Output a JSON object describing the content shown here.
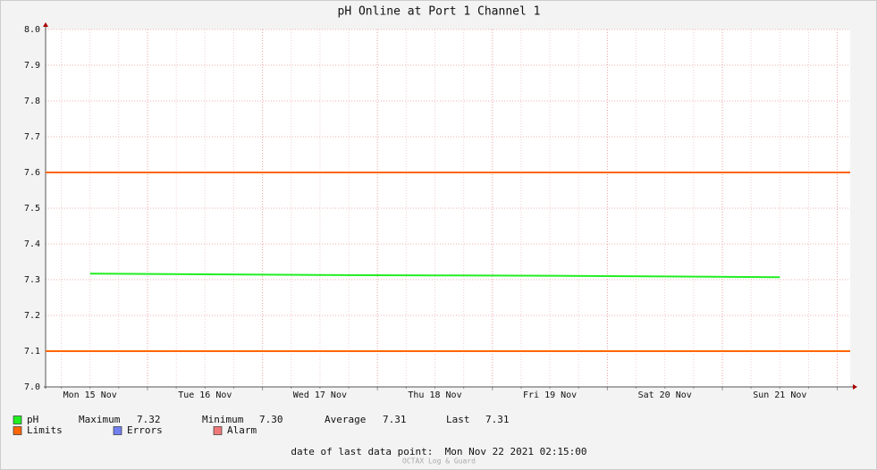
{
  "chart_data": {
    "type": "line",
    "title": "pH Online at Port 1 Channel 1",
    "categories": [
      "Mon 15 Nov",
      "Tue 16 Nov",
      "Wed 17 Nov",
      "Thu 18 Nov",
      "Fri 19 Nov",
      "Sat 20 Nov",
      "Sun 21 Nov"
    ],
    "series": [
      {
        "name": "pH",
        "color": "#22ee22",
        "values": [
          7.317,
          7.315,
          7.313,
          7.312,
          7.311,
          7.309,
          7.307
        ]
      }
    ],
    "limits": {
      "name": "Limits",
      "color": "#ff6600",
      "values": [
        7.6,
        7.1
      ]
    },
    "legend_extra": [
      {
        "name": "Errors",
        "color": "#7080f0"
      },
      {
        "name": "Alarm",
        "color": "#f07878"
      }
    ],
    "stats": [
      {
        "name": "Maximum",
        "value": 7.32
      },
      {
        "name": "Minimum",
        "value": 7.3,
        "label": "7.30"
      },
      {
        "name": "Average",
        "value": 7.31
      },
      {
        "name": "Last",
        "value": 7.31
      }
    ],
    "ylim": [
      7.0,
      8.0
    ],
    "yticks": [
      {
        "value": 7.0,
        "label": "7.0"
      },
      7.1,
      7.2,
      7.3,
      7.4,
      7.5,
      7.6,
      7.7,
      7.8,
      7.9,
      {
        "value": 8.0,
        "label": "8.0"
      }
    ],
    "grid": true,
    "footer": "date of last data point:  Mon Nov 22 2021 02:15:00",
    "watermark": "OCTAX Log & Guard"
  }
}
